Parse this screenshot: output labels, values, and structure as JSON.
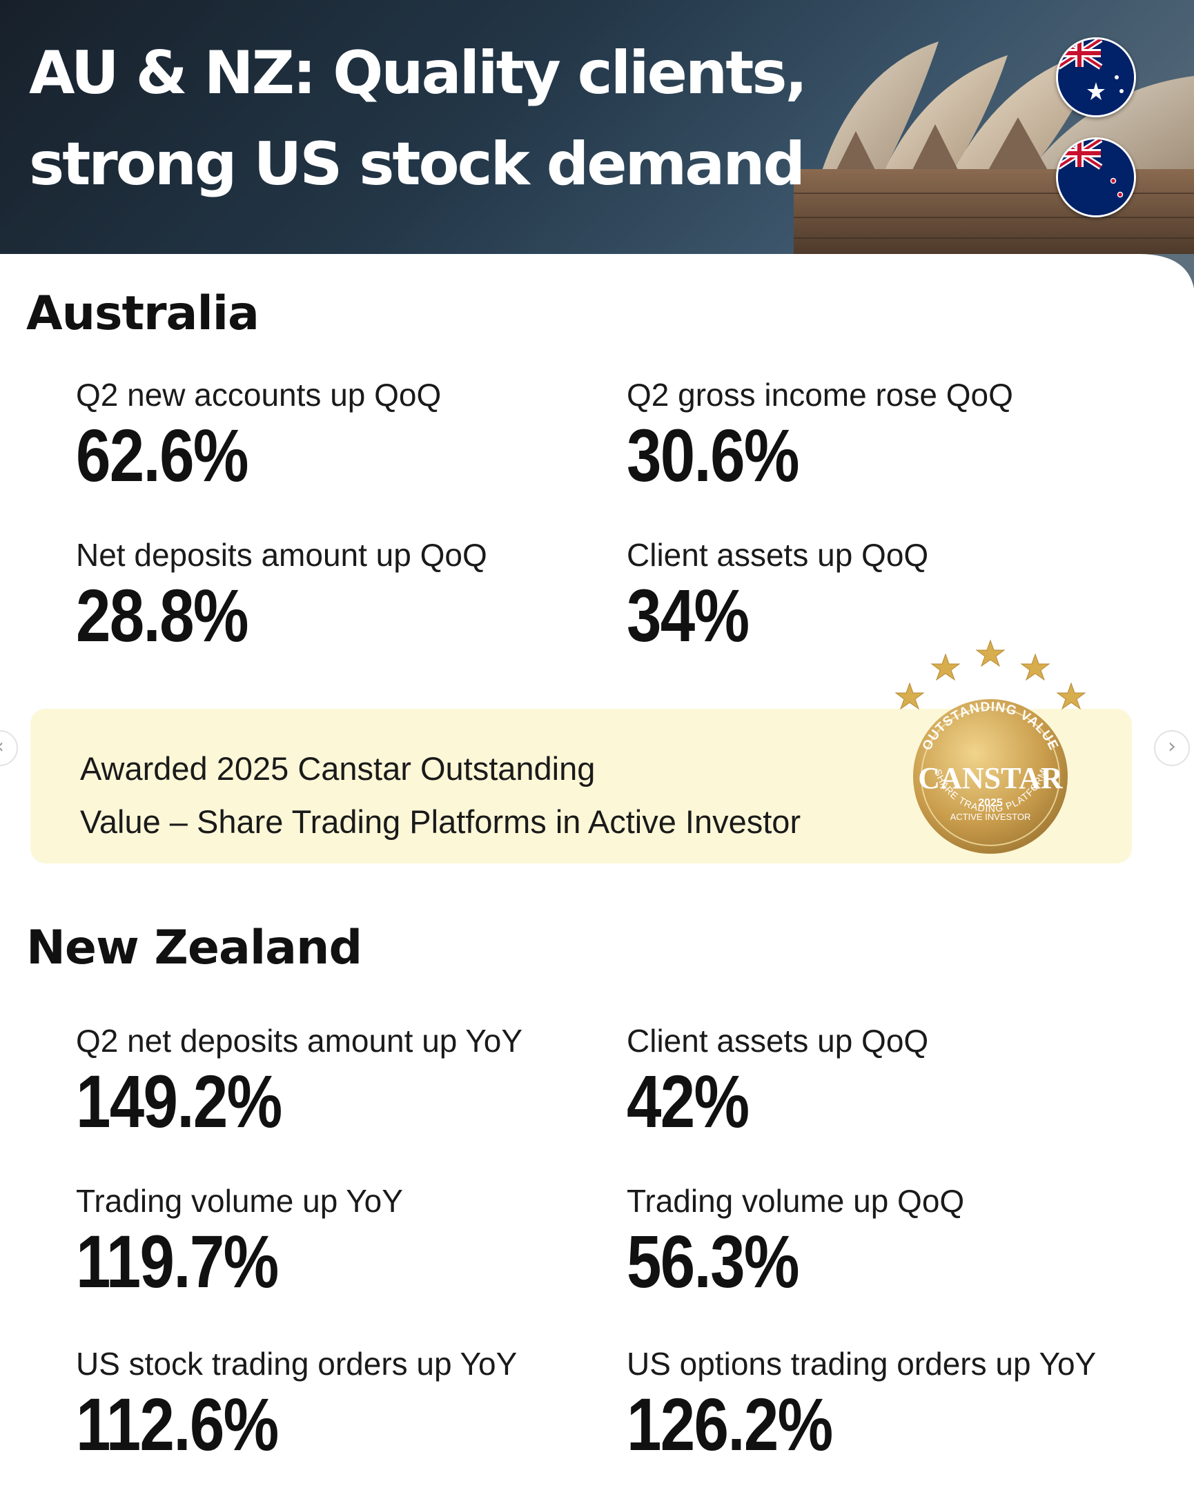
{
  "header": {
    "title_line1": "AU & NZ: Quality clients,",
    "title_line2": "strong US stock demand",
    "background_icon": "sydney-opera-house-image",
    "flags": [
      "australia-flag-icon",
      "new-zealand-flag-icon"
    ]
  },
  "australia": {
    "title": "Australia",
    "stats": [
      {
        "label": "Q2 new accounts up QoQ",
        "value": "62.6%"
      },
      {
        "label": "Q2 gross income rose QoQ",
        "value": "30.6%"
      },
      {
        "label": "Net deposits amount up QoQ",
        "value": "28.8%"
      },
      {
        "label": "Client assets up QoQ",
        "value": "34%"
      }
    ]
  },
  "award": {
    "line1": "Awarded 2025 Canstar Outstanding",
    "line2": "Value – Share Trading Platforms in Active Investor",
    "badge": {
      "brand": "CANSTAR",
      "arc_top": "OUTSTANDING VALUE",
      "year": "2025",
      "line_a": "ACTIVE INVESTOR",
      "arc_bottom": "SHARE TRADING PLATFORM",
      "stars": 5
    }
  },
  "new_zealand": {
    "title": "New Zealand",
    "stats": [
      {
        "label": "Q2 net deposits amount up YoY",
        "value": "149.2%"
      },
      {
        "label": "Client assets up QoQ",
        "value": "42%"
      },
      {
        "label": "Trading volume up YoY",
        "value": "119.7%"
      },
      {
        "label": "Trading volume up QoQ",
        "value": "56.3%"
      },
      {
        "label": "US stock trading orders up YoY",
        "value": "112.6%"
      },
      {
        "label": "US options trading orders up YoY",
        "value": "126.2%"
      }
    ]
  },
  "nav": {
    "prev": "‹",
    "next": "›"
  },
  "colors": {
    "header_dark": "#1b2733",
    "award_bg": "#fcf7d7",
    "gold": "#c9a04a",
    "text": "#111111"
  }
}
